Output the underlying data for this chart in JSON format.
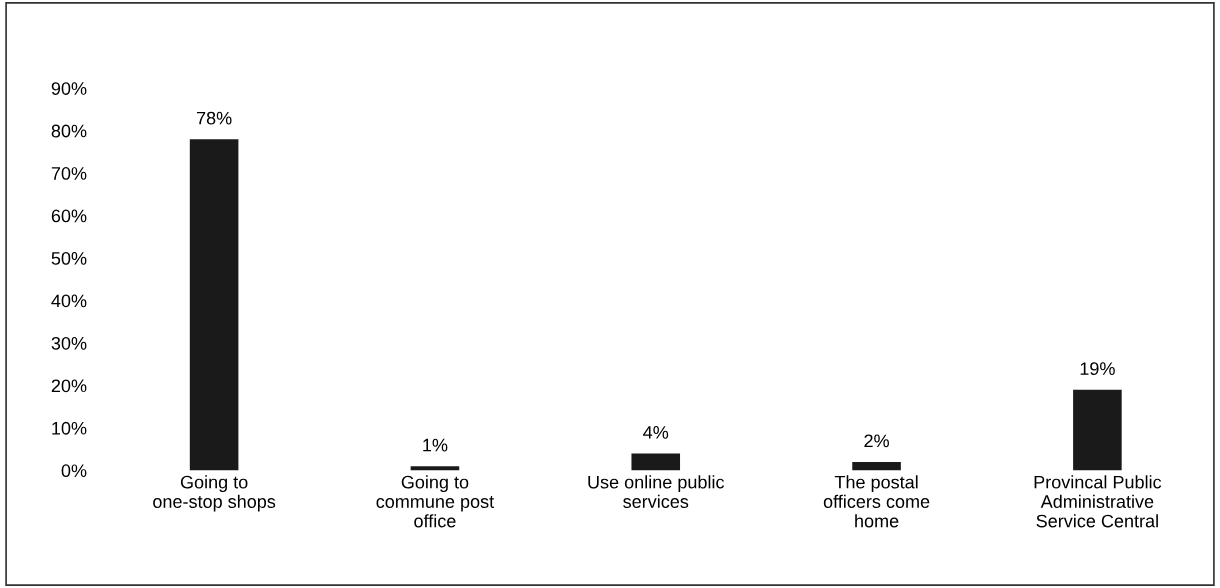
{
  "chart_data": {
    "type": "bar",
    "categories": [
      "Going to\none-stop shops",
      "Going to\ncommune post\noffice",
      "Use online public\nservices",
      "The postal\nofficers come\nhome",
      "Provincal Public\nAdministrative\nService Central"
    ],
    "values": [
      78,
      1,
      4,
      2,
      19
    ],
    "value_labels": [
      "78%",
      "1%",
      "4%",
      "2%",
      "19%"
    ],
    "color": "#1a1a1a",
    "ylim": [
      0,
      90
    ],
    "yticks": [
      {
        "value": 0,
        "label": "0%"
      },
      {
        "value": 10,
        "label": "10%"
      },
      {
        "value": 20,
        "label": "20%"
      },
      {
        "value": 30,
        "label": "30%"
      },
      {
        "value": 40,
        "label": "40%"
      },
      {
        "value": 50,
        "label": "50%"
      },
      {
        "value": 60,
        "label": "60%"
      },
      {
        "value": 70,
        "label": "70%"
      },
      {
        "value": 80,
        "label": "80%"
      },
      {
        "value": 90,
        "label": "90%"
      }
    ],
    "grid": false
  }
}
